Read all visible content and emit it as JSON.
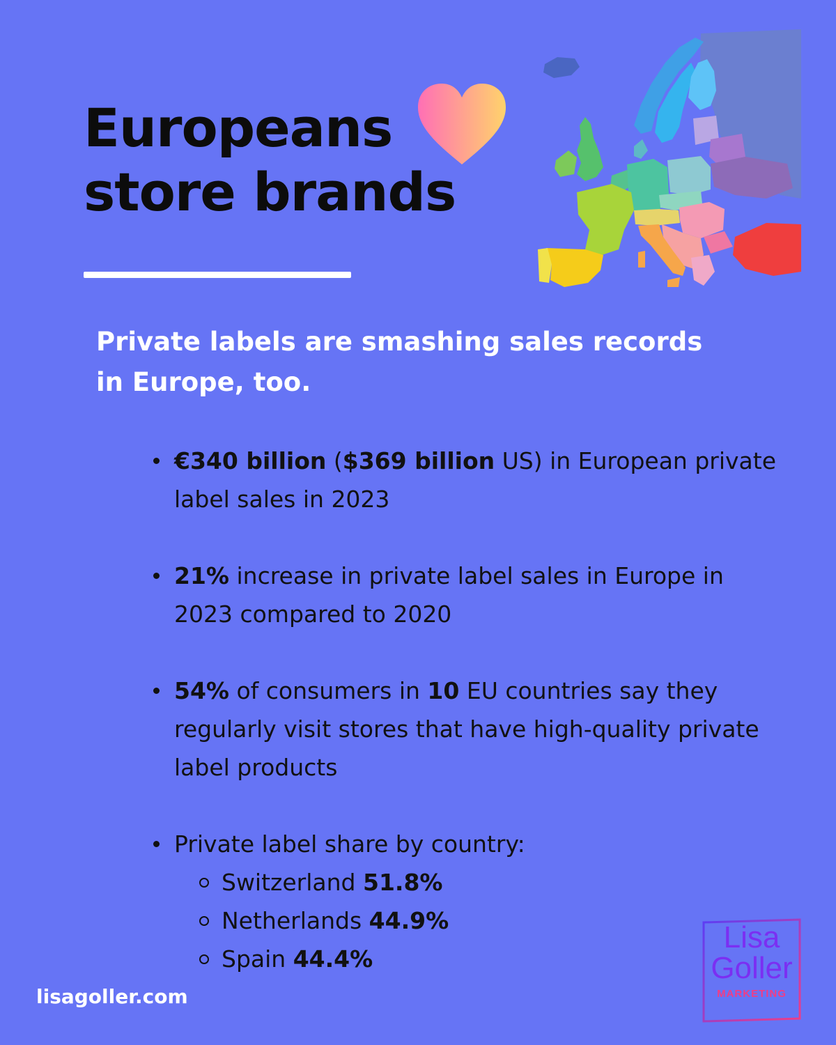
{
  "title": {
    "line1": "Europeans",
    "line2": "store brands"
  },
  "subtitle": "Private labels are smashing sales records in Europe, too.",
  "facts": {
    "f1": {
      "b1": "€340 billion",
      "t1": " (",
      "b2": "$369 billion",
      "t2": " US) in European private label sales in 2023"
    },
    "f2": {
      "b1": "21%",
      "t1": " increase in private label sales in Europe in 2023 compared to 2020"
    },
    "f3": {
      "b1": "54%",
      "t1": " of consumers in ",
      "b2": "10",
      "t2": " EU countries say they regularly visit stores that have high-quality private label products"
    },
    "f4": {
      "label": "Private label share by country:",
      "countries": [
        {
          "name": "Switzerland ",
          "value": "51.8%"
        },
        {
          "name": "Netherlands ",
          "value": "44.9%"
        },
        {
          "name": "Spain ",
          "value": "44.4%"
        }
      ]
    }
  },
  "footer": {
    "site": "lisagoller.com"
  },
  "logo": {
    "line1": "Lisa",
    "line2": "Goller",
    "line3": "MARKETING"
  },
  "icons": {
    "heart": "heart-icon",
    "map": "europe-map-icon"
  },
  "colors": {
    "background": "#6674f5",
    "heart_start": "#ff6fb5",
    "heart_end": "#ffd36b"
  }
}
